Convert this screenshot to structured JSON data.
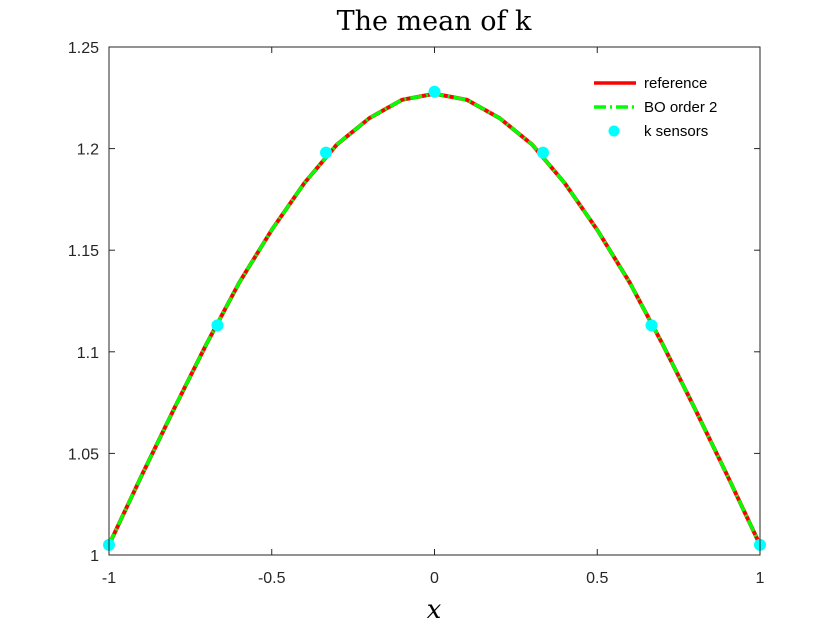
{
  "chart_data": {
    "type": "line",
    "title": "The mean of k",
    "xlabel": "x",
    "ylabel": "",
    "xlim": [
      -1,
      1
    ],
    "ylim": [
      1,
      1.25
    ],
    "xticks": [
      -1,
      -0.5,
      0,
      0.5,
      1
    ],
    "xtick_labels": [
      "-1",
      "-0.5",
      "0",
      "0.5",
      "1"
    ],
    "yticks": [
      1,
      1.05,
      1.1,
      1.15,
      1.2,
      1.25
    ],
    "ytick_labels": [
      "1",
      "1.05",
      "1.1",
      "1.15",
      "1.2",
      "1.25"
    ],
    "grid": false,
    "legend_position": "top-right",
    "series": [
      {
        "name": "reference",
        "style": "solid",
        "color": "#ff0000",
        "x": [
          -1,
          -0.9,
          -0.8,
          -0.7,
          -0.6,
          -0.5,
          -0.4,
          -0.3,
          -0.2,
          -0.1,
          0,
          0.1,
          0.2,
          0.3,
          0.4,
          0.5,
          0.6,
          0.7,
          0.8,
          0.9,
          1
        ],
        "y": [
          1.005,
          1.039,
          1.072,
          1.104,
          1.134,
          1.16,
          1.183,
          1.202,
          1.215,
          1.224,
          1.227,
          1.224,
          1.215,
          1.202,
          1.183,
          1.16,
          1.134,
          1.104,
          1.072,
          1.039,
          1.005
        ]
      },
      {
        "name": "BO order 2",
        "style": "dash-dot",
        "color": "#00ff00",
        "x": [
          -1,
          -0.9,
          -0.8,
          -0.7,
          -0.6,
          -0.5,
          -0.4,
          -0.3,
          -0.2,
          -0.1,
          0,
          0.1,
          0.2,
          0.3,
          0.4,
          0.5,
          0.6,
          0.7,
          0.8,
          0.9,
          1
        ],
        "y": [
          1.005,
          1.039,
          1.072,
          1.104,
          1.134,
          1.16,
          1.183,
          1.202,
          1.215,
          1.224,
          1.227,
          1.224,
          1.215,
          1.202,
          1.183,
          1.16,
          1.134,
          1.104,
          1.072,
          1.039,
          1.005
        ]
      },
      {
        "name": "k sensors",
        "style": "markers",
        "color": "#00ffff",
        "x": [
          -1,
          -0.6667,
          -0.3333,
          0,
          0.3333,
          0.6667,
          1
        ],
        "y": [
          1.005,
          1.113,
          1.198,
          1.228,
          1.198,
          1.113,
          1.005
        ]
      }
    ]
  }
}
